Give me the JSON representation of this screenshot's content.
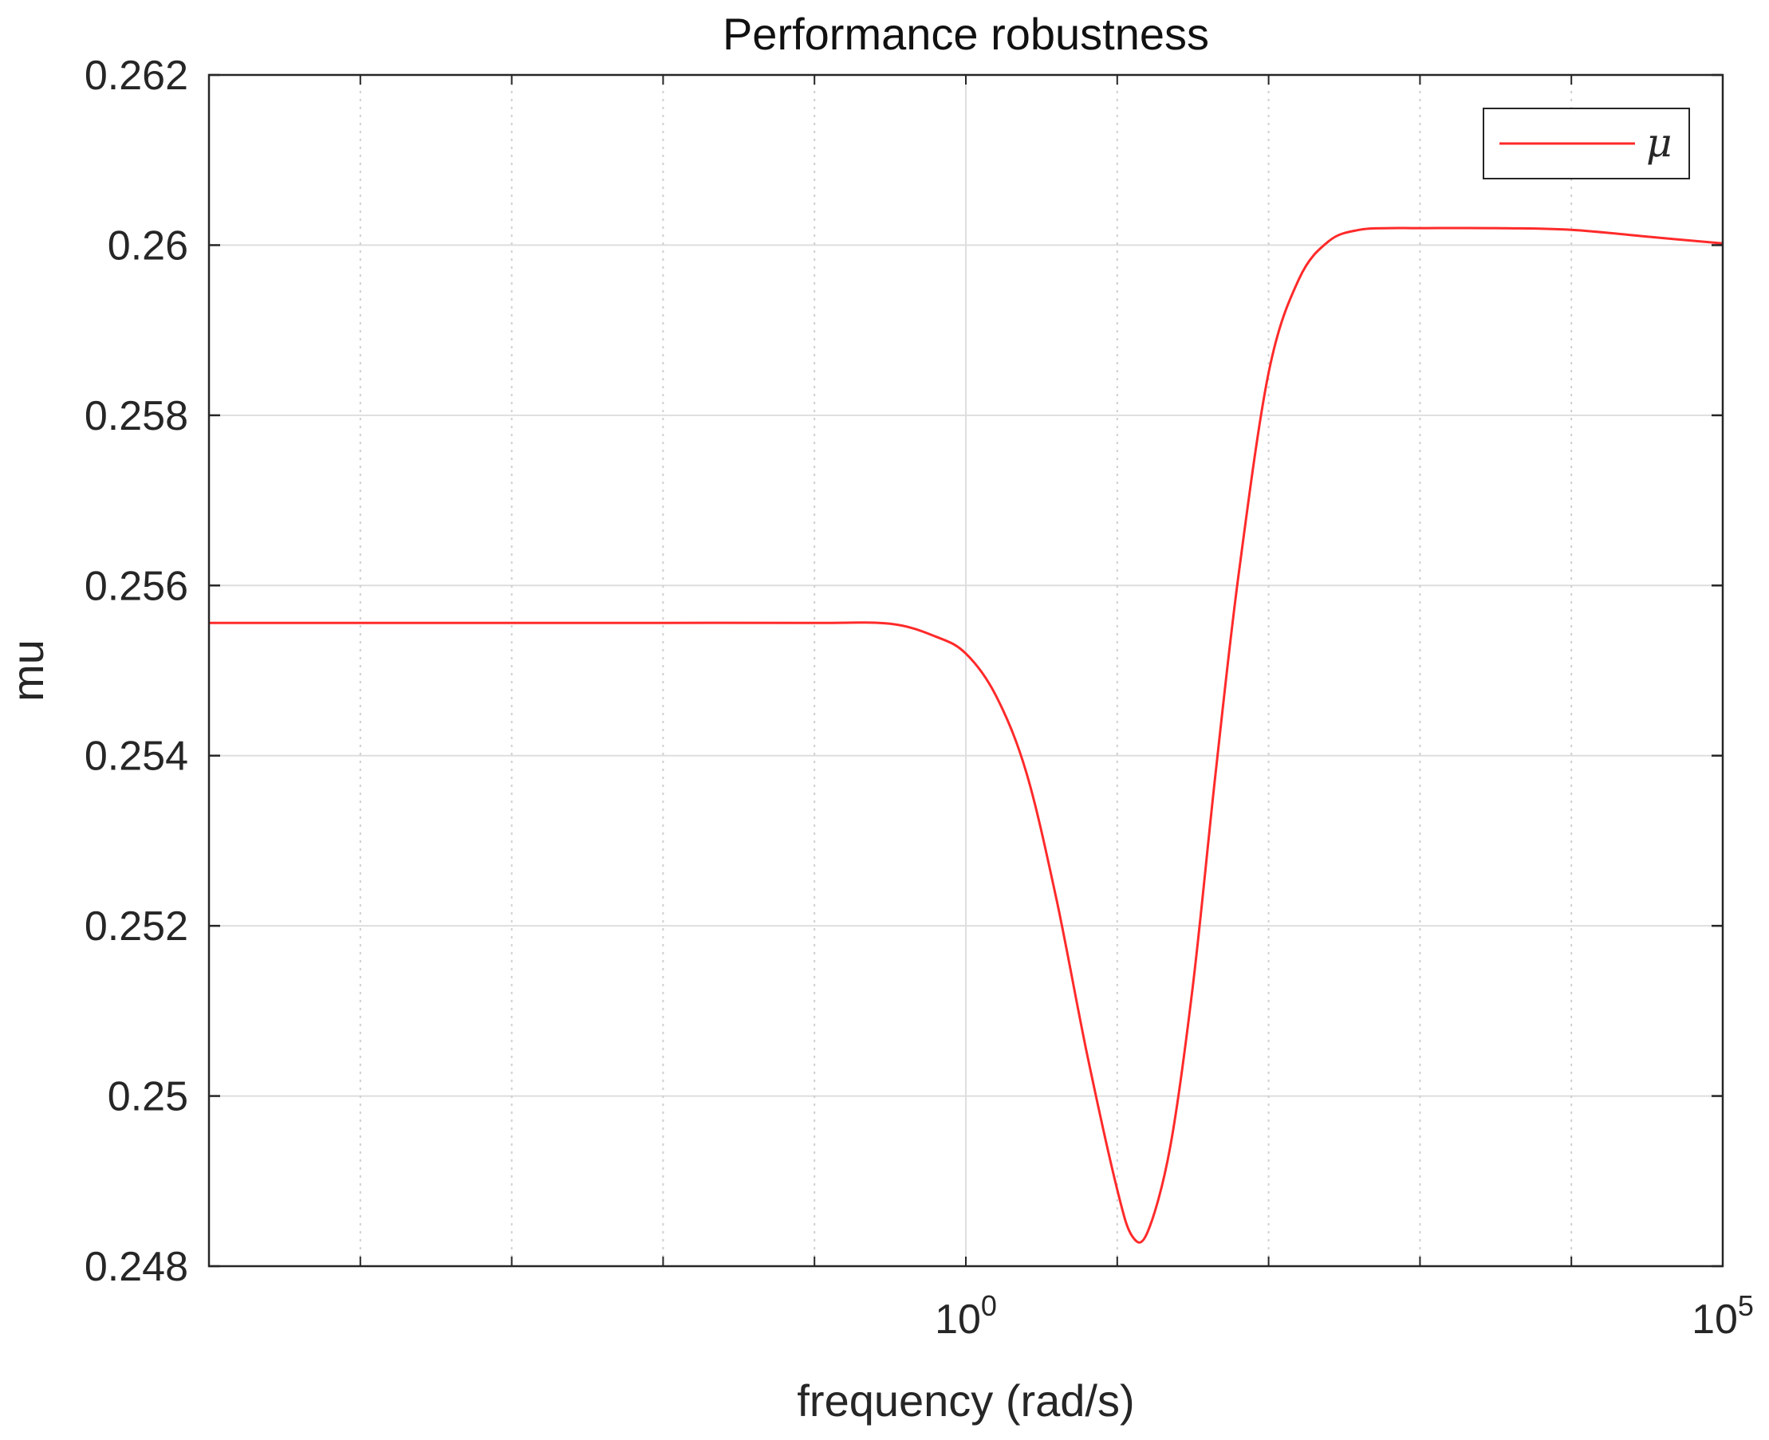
{
  "chart_data": {
    "type": "line",
    "title": "Performance robustness",
    "xlabel": "frequency (rad/s)",
    "ylabel": "mu",
    "x_scale": "log",
    "xlim_log10": [
      -5,
      5
    ],
    "ylim": [
      0.248,
      0.262
    ],
    "grid": true,
    "legend_position": "top-right",
    "y_ticks": [
      "0.248",
      "0.25",
      "0.252",
      "0.254",
      "0.256",
      "0.258",
      "0.26",
      "0.262"
    ],
    "x_ticks": [
      {
        "value_log10": 0,
        "base": "10",
        "exp": "0"
      },
      {
        "value_log10": 5,
        "base": "10",
        "exp": "5"
      }
    ],
    "series": [
      {
        "name": "μ",
        "color": "#ff2a2a",
        "log10_x": [
          -5,
          -4,
          -3,
          -2,
          -1,
          -0.5,
          -0.2,
          0,
          0.2,
          0.4,
          0.6,
          0.8,
          1.0,
          1.1,
          1.2,
          1.35,
          1.5,
          1.65,
          1.8,
          2.0,
          2.2,
          2.4,
          2.6,
          2.8,
          3.0,
          3.5,
          4.0,
          4.5,
          5.0
        ],
        "y": [
          0.25556,
          0.25556,
          0.25556,
          0.25556,
          0.25556,
          0.25555,
          0.2554,
          0.2552,
          0.2547,
          0.2538,
          0.2523,
          0.2505,
          0.2489,
          0.24835,
          0.2484,
          0.2494,
          0.2513,
          0.2538,
          0.2561,
          0.2585,
          0.2596,
          0.26005,
          0.26018,
          0.2602,
          0.2602,
          0.2602,
          0.26018,
          0.2601,
          0.26002
        ]
      }
    ]
  }
}
